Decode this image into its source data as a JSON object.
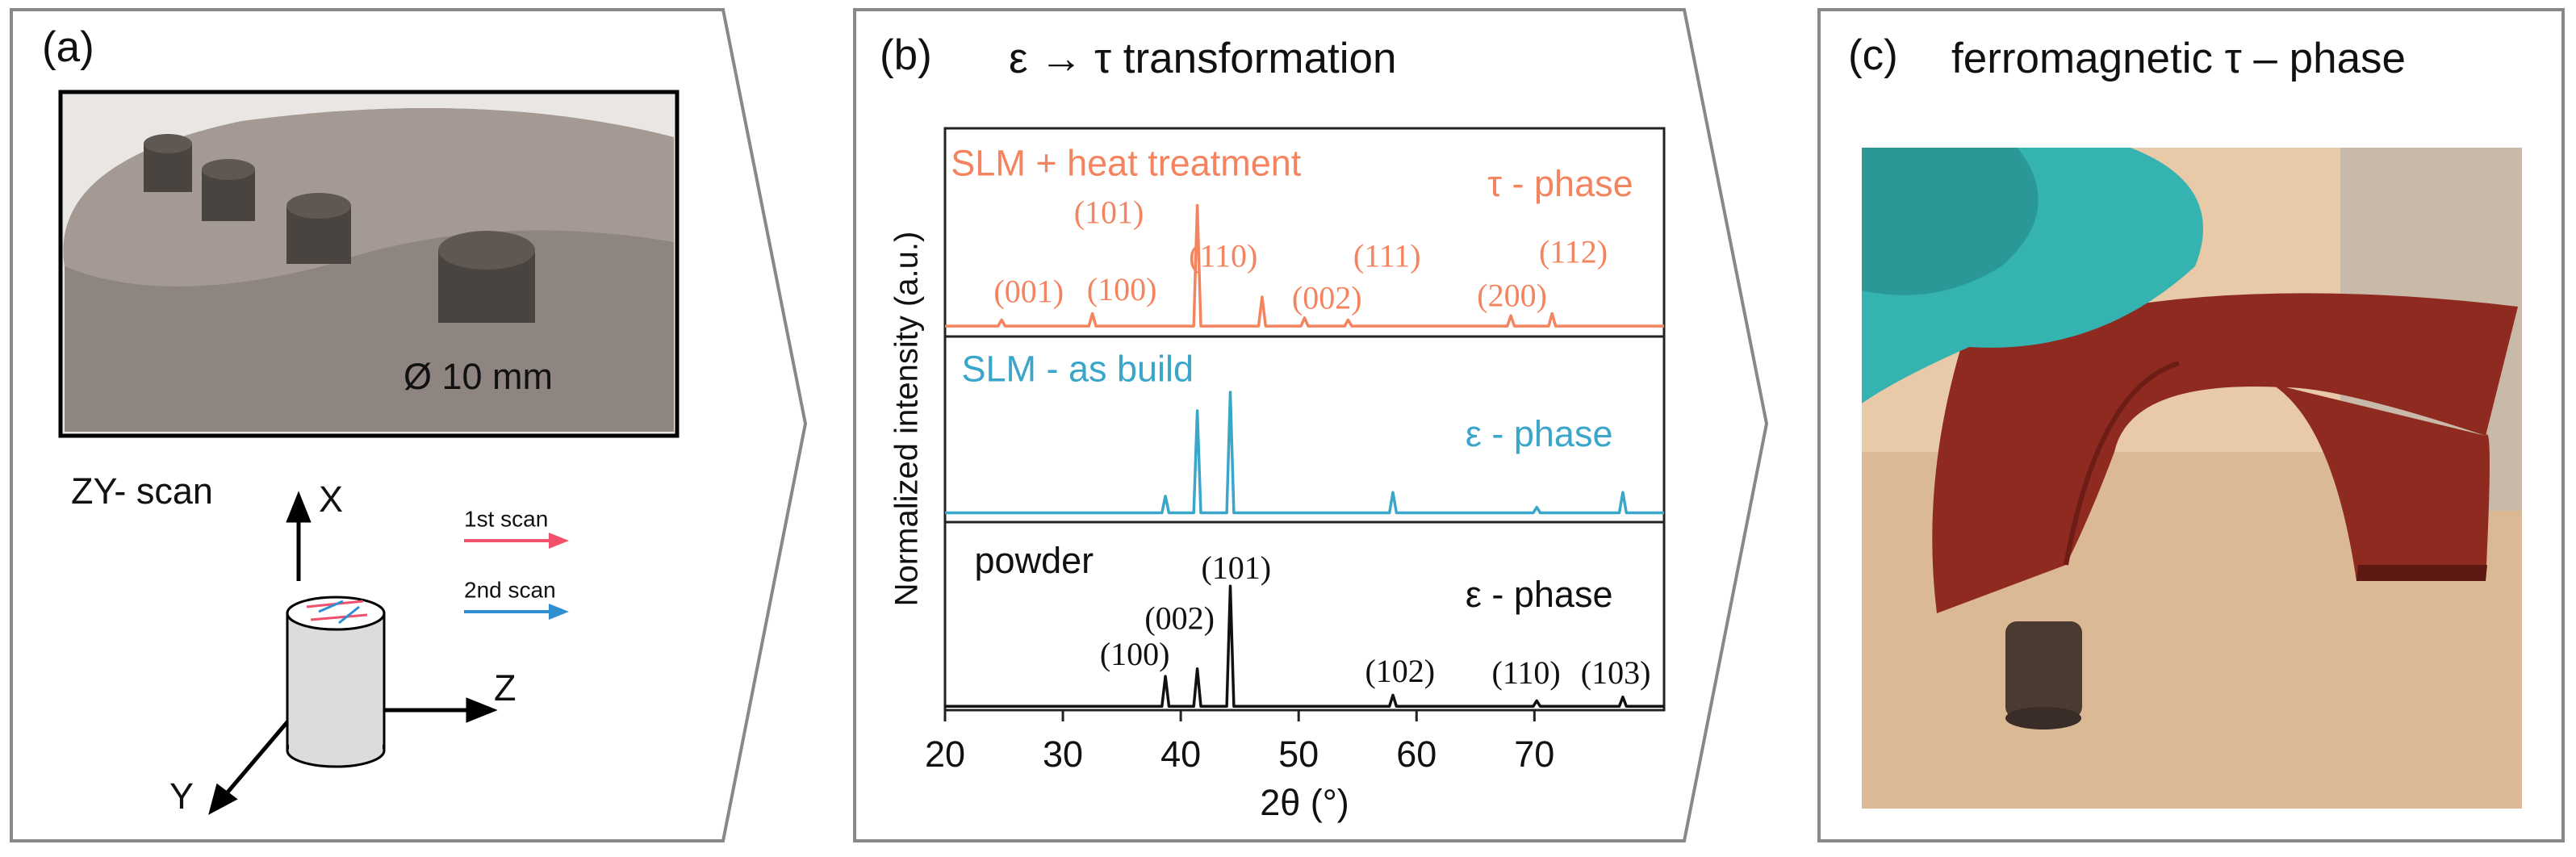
{
  "panels": {
    "a": {
      "label": "(a)",
      "diameter": "Ø 10 mm",
      "scan_title": "ZY- scan",
      "axis_x": "X",
      "axis_y": "Y",
      "axis_z": "Z",
      "first_scan": "1st scan",
      "second_scan": "2nd scan"
    },
    "b": {
      "label": "(b)",
      "title": "ε → τ transformation",
      "ylabel": "Normalized intensity (a.u.)"
    },
    "c": {
      "label": "(c)",
      "title": "ferromagnetic τ – phase"
    }
  },
  "chart_data": [
    {
      "type": "line",
      "color": "#f4845f",
      "xlim": [
        20,
        81
      ],
      "ylim": [
        0,
        1
      ],
      "x": [
        20,
        24.5,
        24.8,
        25.1,
        32.2,
        32.5,
        32.8,
        41.1,
        41.4,
        41.7,
        46.6,
        46.9,
        47.2,
        50.2,
        50.5,
        50.8,
        53.9,
        54.2,
        54.5,
        67.7,
        68.0,
        68.3,
        71.2,
        71.5,
        71.8,
        81
      ],
      "values": [
        0.05,
        0.05,
        0.08,
        0.05,
        0.05,
        0.11,
        0.05,
        0.05,
        0.63,
        0.05,
        0.05,
        0.19,
        0.05,
        0.05,
        0.09,
        0.05,
        0.05,
        0.08,
        0.05,
        0.05,
        0.1,
        0.05,
        0.05,
        0.11,
        0.05,
        0.05
      ],
      "annotations": [
        {
          "text": "SLM + heat treatment",
          "x": 20.5,
          "y": 0.82
        },
        {
          "text": "τ - phase",
          "x": 72.2,
          "y": 0.72
        },
        {
          "text": "(001)",
          "x": 27.1,
          "y": 0.2
        },
        {
          "text": "(100)",
          "x": 35,
          "y": 0.21
        },
        {
          "text": "(101)",
          "x": 33.9,
          "y": 0.58
        },
        {
          "text": "(110)",
          "x": 43.6,
          "y": 0.37
        },
        {
          "text": "(002)",
          "x": 52.4,
          "y": 0.17
        },
        {
          "text": "(111)",
          "x": 57.5,
          "y": 0.37
        },
        {
          "text": "(200)",
          "x": 68.1,
          "y": 0.18
        },
        {
          "text": "(112)",
          "x": 73.3,
          "y": 0.39
        }
      ]
    },
    {
      "type": "line",
      "color": "#3aa6c9",
      "xlim": [
        20,
        81
      ],
      "ylim": [
        0,
        1
      ],
      "x": [
        20,
        38.4,
        38.7,
        39.0,
        41.1,
        41.4,
        41.7,
        43.9,
        44.2,
        44.5,
        57.7,
        58.0,
        58.3,
        69.9,
        70.2,
        70.5,
        77.2,
        77.5,
        77.8,
        81
      ],
      "values": [
        0.05,
        0.05,
        0.14,
        0.05,
        0.05,
        0.6,
        0.05,
        0.05,
        0.7,
        0.05,
        0.05,
        0.16,
        0.05,
        0.05,
        0.08,
        0.05,
        0.05,
        0.16,
        0.05,
        0.05
      ],
      "annotations": [
        {
          "text": "SLM - as build",
          "x": 21.4,
          "y": 0.81
        },
        {
          "text": "ε - phase",
          "x": 70.4,
          "y": 0.46
        }
      ]
    },
    {
      "type": "line",
      "color": "#111111",
      "xlim": [
        20,
        81
      ],
      "ylim": [
        0,
        1
      ],
      "xticks": [
        20,
        30,
        40,
        50,
        60,
        70
      ],
      "xlabel": "2θ (°)",
      "x": [
        20,
        38.4,
        38.7,
        39.0,
        41.1,
        41.4,
        41.7,
        43.9,
        44.2,
        44.5,
        57.7,
        58.0,
        58.3,
        69.9,
        70.2,
        70.5,
        77.2,
        77.5,
        77.8,
        81
      ],
      "values": [
        0.02,
        0.02,
        0.18,
        0.02,
        0.02,
        0.22,
        0.02,
        0.02,
        0.66,
        0.02,
        0.02,
        0.08,
        0.02,
        0.02,
        0.05,
        0.02,
        0.02,
        0.07,
        0.02,
        0.02
      ],
      "annotations": [
        {
          "text": "powder",
          "x": 22.5,
          "y": 0.78
        },
        {
          "text": "ε - phase",
          "x": 70.4,
          "y": 0.6
        },
        {
          "text": "(100)",
          "x": 36.1,
          "y": 0.28
        },
        {
          "text": "(002)",
          "x": 39.9,
          "y": 0.47
        },
        {
          "text": "(101)",
          "x": 44.7,
          "y": 0.74
        },
        {
          "text": "(102)",
          "x": 58.6,
          "y": 0.19
        },
        {
          "text": "(110)",
          "x": 69.3,
          "y": 0.18
        },
        {
          "text": "(103)",
          "x": 76.9,
          "y": 0.18
        }
      ]
    }
  ]
}
